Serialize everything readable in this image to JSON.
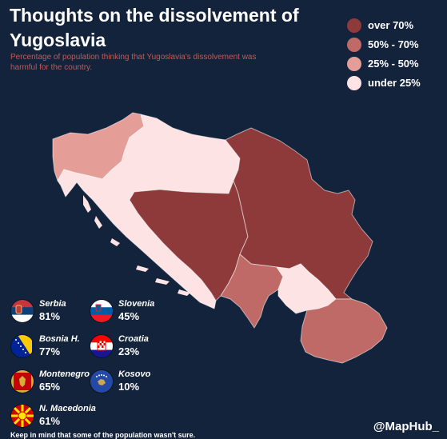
{
  "title": "Thoughts on the dissolvement of Yugoslavia",
  "subtitle": "Percentage of population thinking that Yugoslavia's dissolvement was harmful for the country.",
  "legend": [
    {
      "label": "over 70%",
      "color": "#8e3a3a"
    },
    {
      "label": "50% - 70%",
      "color": "#bf6a66"
    },
    {
      "label": "25% - 50%",
      "color": "#e59d98"
    },
    {
      "label": "under 25%",
      "color": "#fde3e3"
    }
  ],
  "regions": [
    {
      "name": "Slovenia",
      "category": "25% - 50%"
    },
    {
      "name": "Croatia",
      "category": "under 25%"
    },
    {
      "name": "Bosnia H.",
      "category": "over 70%"
    },
    {
      "name": "Serbia",
      "category": "over 70%"
    },
    {
      "name": "Montenegro",
      "category": "50% - 70%"
    },
    {
      "name": "Kosovo",
      "category": "under 25%"
    },
    {
      "name": "N. Macedonia",
      "category": "50% - 70%"
    }
  ],
  "stats": [
    {
      "name": "Serbia",
      "value": "81%",
      "flag": "serbia-flag"
    },
    {
      "name": "Slovenia",
      "value": "45%",
      "flag": "slovenia-flag"
    },
    {
      "name": "Bosnia H.",
      "value": "77%",
      "flag": "bosnia-flag"
    },
    {
      "name": "Croatia",
      "value": "23%",
      "flag": "croatia-flag"
    },
    {
      "name": "Montenegro",
      "value": "65%",
      "flag": "montenegro-flag"
    },
    {
      "name": "Kosovo",
      "value": "10%",
      "flag": "kosovo-flag"
    },
    {
      "name": "N. Macedonia",
      "value": "61%",
      "flag": "macedonia-flag"
    }
  ],
  "brand": "@MapHub_",
  "footnote": "Keep in mind that some of the population wasn't sure."
}
